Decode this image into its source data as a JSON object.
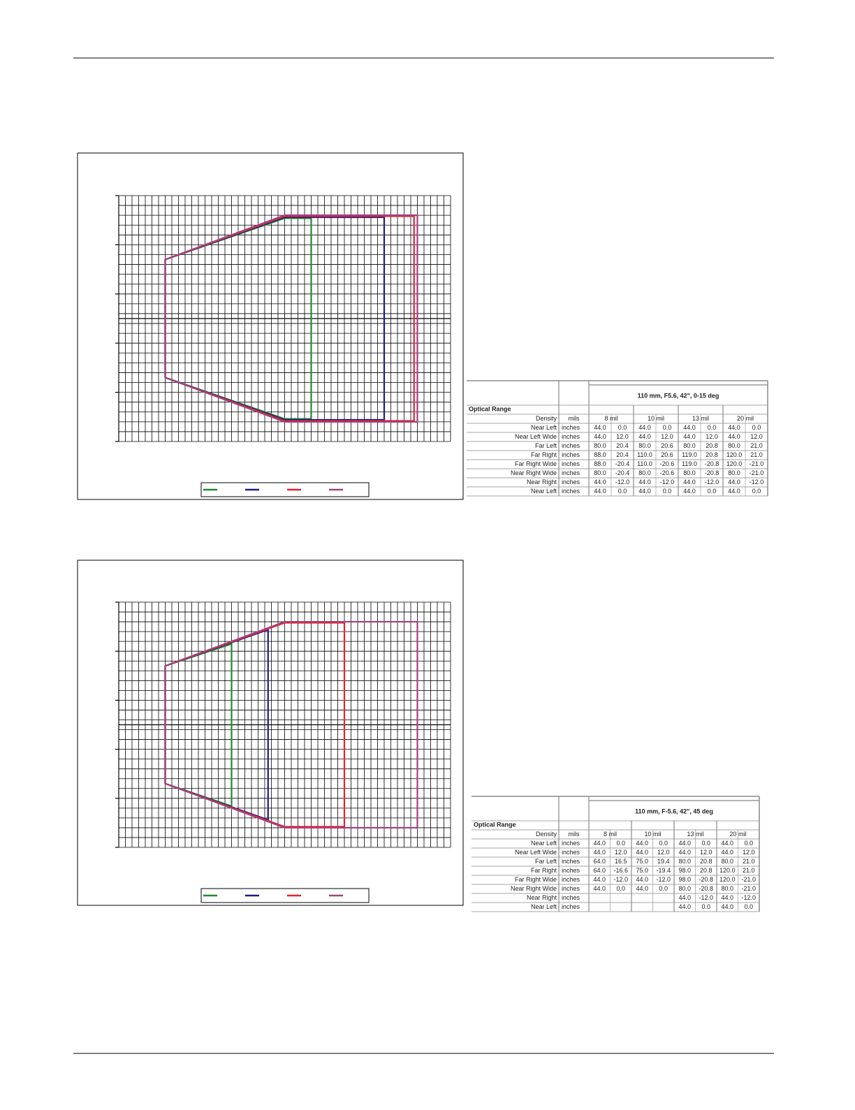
{
  "chart_data": [
    {
      "type": "line",
      "grid": true,
      "xlim": [
        30,
        130
      ],
      "ylim": [
        -25,
        25
      ],
      "yticks": [
        -25,
        -15,
        -5,
        5,
        15,
        25
      ],
      "series": [
        {
          "color": "#1f8a2a",
          "x": [
            44,
            44,
            80,
            88,
            88,
            80,
            44,
            44
          ],
          "values": [
            0,
            12,
            20.4,
            20.4,
            -20.4,
            -20.4,
            -12,
            0
          ]
        },
        {
          "color": "#1c1c86",
          "x": [
            44,
            44,
            80,
            110,
            110,
            80,
            44,
            44
          ],
          "values": [
            0,
            12,
            20.6,
            20.6,
            -20.6,
            -20.6,
            -12,
            0
          ]
        },
        {
          "color": "#e8202e",
          "x": [
            44,
            44,
            80,
            119,
            119,
            80,
            44,
            44
          ],
          "values": [
            0,
            12,
            20.8,
            20.8,
            -20.8,
            -20.8,
            -12,
            0
          ]
        },
        {
          "color": "#a4407e",
          "x": [
            44,
            44,
            80,
            120,
            120,
            80,
            44,
            44
          ],
          "values": [
            0,
            12,
            21,
            21,
            -21,
            -21,
            -12,
            0
          ]
        }
      ]
    },
    {
      "type": "line",
      "grid": true,
      "xlim": [
        30,
        130
      ],
      "ylim": [
        -25,
        25
      ],
      "yticks": [
        -25,
        -15,
        -5,
        5,
        15,
        25
      ],
      "series": [
        {
          "color": "#1f8a2a",
          "x": [
            44,
            44,
            64,
            64,
            44,
            44,
            null,
            null
          ],
          "values": [
            0,
            12,
            16.5,
            -16.6,
            -12,
            0,
            null,
            null
          ]
        },
        {
          "color": "#1c1c86",
          "x": [
            44,
            44,
            75,
            75,
            44,
            44,
            null,
            null
          ],
          "values": [
            0,
            12,
            19.4,
            -19.4,
            -12,
            0,
            null,
            null
          ]
        },
        {
          "color": "#e8202e",
          "x": [
            44,
            44,
            80,
            98,
            98,
            80,
            44,
            44
          ],
          "values": [
            0,
            12,
            20.8,
            20.8,
            -20.8,
            -20.8,
            -12,
            0
          ]
        },
        {
          "color": "#a4407e",
          "x": [
            44,
            44,
            80,
            120,
            120,
            80,
            44,
            44
          ],
          "values": [
            0,
            12,
            21,
            21,
            -21,
            -21,
            -12,
            0
          ]
        }
      ]
    }
  ],
  "tables": [
    {
      "title": "110 mm, F5.6, 42\", 0-15 deg",
      "section": "Optical Range",
      "header": [
        "Density",
        "mils",
        "8 mil",
        "10 mil",
        "13 mil",
        "20 mil"
      ],
      "rows": [
        {
          "label": "Near Left",
          "unit": "inches",
          "cells": [
            "44.0",
            "0.0",
            "44.0",
            "0.0",
            "44.0",
            "0.0",
            "44.0",
            "0.0"
          ]
        },
        {
          "label": "Near Left Wide",
          "unit": "inches",
          "cells": [
            "44.0",
            "12.0",
            "44.0",
            "12.0",
            "44.0",
            "12.0",
            "44.0",
            "12.0"
          ]
        },
        {
          "label": "Far Left",
          "unit": "inches",
          "cells": [
            "80.0",
            "20.4",
            "80.0",
            "20.6",
            "80.0",
            "20.8",
            "80.0",
            "21.0"
          ]
        },
        {
          "label": "Far Right",
          "unit": "inches",
          "cells": [
            "88.0",
            "20.4",
            "110.0",
            "20.6",
            "119.0",
            "20.8",
            "120.0",
            "21.0"
          ]
        },
        {
          "label": "Far Right Wide",
          "unit": "inches",
          "cells": [
            "88.0",
            "-20.4",
            "110.0",
            "-20.6",
            "119.0",
            "-20.8",
            "120.0",
            "-21.0"
          ]
        },
        {
          "label": "Near Right Wide",
          "unit": "inches",
          "cells": [
            "80.0",
            "-20.4",
            "80.0",
            "-20.6",
            "80.0",
            "-20.8",
            "80.0",
            "-21.0"
          ]
        },
        {
          "label": "Near Right",
          "unit": "inches",
          "cells": [
            "44.0",
            "-12.0",
            "44.0",
            "-12.0",
            "44.0",
            "-12.0",
            "44.0",
            "-12.0"
          ]
        },
        {
          "label": "Near Left",
          "unit": "inches",
          "cells": [
            "44.0",
            "0.0",
            "44.0",
            "0.0",
            "44.0",
            "0.0",
            "44.0",
            "0.0"
          ]
        }
      ]
    },
    {
      "title": "110 mm, F-5.6, 42\", 45 deg",
      "section": "Optical Range",
      "header": [
        "Density",
        "mils",
        "8 mil",
        "10 mil",
        "13 mil",
        "20 mil"
      ],
      "rows": [
        {
          "label": "Near Left",
          "unit": "inches",
          "cells": [
            "44.0",
            "0.0",
            "44.0",
            "0.0",
            "44.0",
            "0.0",
            "44.0",
            "0.0"
          ]
        },
        {
          "label": "Near Left Wide",
          "unit": "inches",
          "cells": [
            "44.0",
            "12.0",
            "44.0",
            "12.0",
            "44.0",
            "12.0",
            "44.0",
            "12.0"
          ]
        },
        {
          "label": "Far Left",
          "unit": "inches",
          "cells": [
            "64.0",
            "16.5",
            "75.0",
            "19.4",
            "80.0",
            "20.8",
            "80.0",
            "21.0"
          ]
        },
        {
          "label": "Far Right",
          "unit": "inches",
          "cells": [
            "64.0",
            "-16.6",
            "75.0",
            "-19.4",
            "98.0",
            "20.8",
            "120.0",
            "21.0"
          ]
        },
        {
          "label": "Far Right Wide",
          "unit": "inches",
          "cells": [
            "44.0",
            "-12.0",
            "44.0",
            "-12.0",
            "98.0",
            "-20.8",
            "120.0",
            "-21.0"
          ]
        },
        {
          "label": "Near Right Wide",
          "unit": "inches",
          "cells": [
            "44.0",
            "0.0",
            "44.0",
            "0.0",
            "80.0",
            "-20.8",
            "80.0",
            "-21.0"
          ]
        },
        {
          "label": "Near Right",
          "unit": "inches",
          "cells": [
            null,
            null,
            null,
            null,
            "44.0",
            "-12.0",
            "44.0",
            "-12.0"
          ]
        },
        {
          "label": "Near Left",
          "unit": "inches",
          "cells": [
            null,
            null,
            null,
            null,
            "44.0",
            "0.0",
            "44.0",
            "0.0"
          ]
        }
      ]
    }
  ]
}
